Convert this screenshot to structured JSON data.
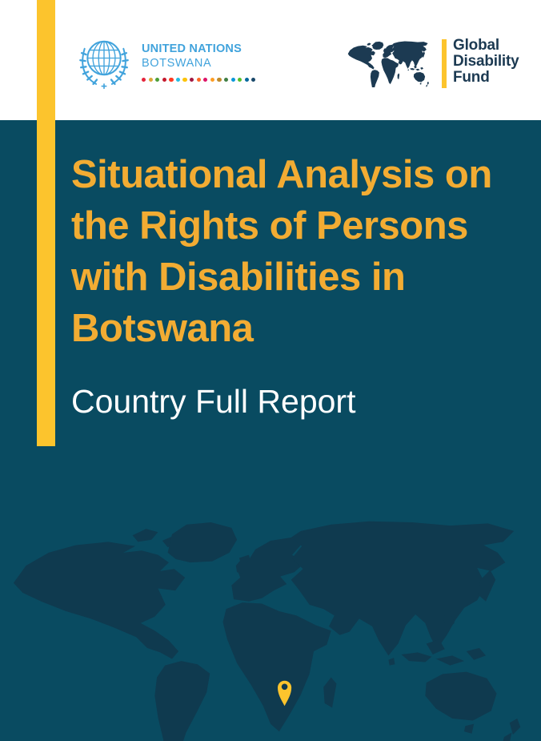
{
  "header": {
    "un": {
      "name": "UNITED NATIONS",
      "country": "BOTSWANA",
      "sdg_dot_colors": [
        "#E5243B",
        "#DDA63A",
        "#4C9F38",
        "#C5192D",
        "#FF3A21",
        "#26BDE2",
        "#FCC30B",
        "#A21942",
        "#FD6925",
        "#DD1367",
        "#FD9D24",
        "#BF8B2E",
        "#3F7E44",
        "#0A97D9",
        "#56C02B",
        "#00689D",
        "#19486A"
      ]
    },
    "gdf": {
      "line1": "Global",
      "line2": "Disability",
      "line3": "Fund"
    }
  },
  "cover": {
    "title_lines": [
      "Situational Analysis on",
      "the Rights of Persons",
      "with Disabilities in",
      "Botswana"
    ],
    "subtitle": "Country Full Report"
  },
  "colors": {
    "background_teal": "#094B61",
    "map_navy": "#0F3A4F",
    "accent_yellow": "#FCC42D",
    "title_gold": "#F2AC33",
    "un_blue": "#41A3DC",
    "gdf_navy": "#1C3A52",
    "header_background": "#FFFFFF",
    "subtitle_text": "#FFFFFF"
  }
}
